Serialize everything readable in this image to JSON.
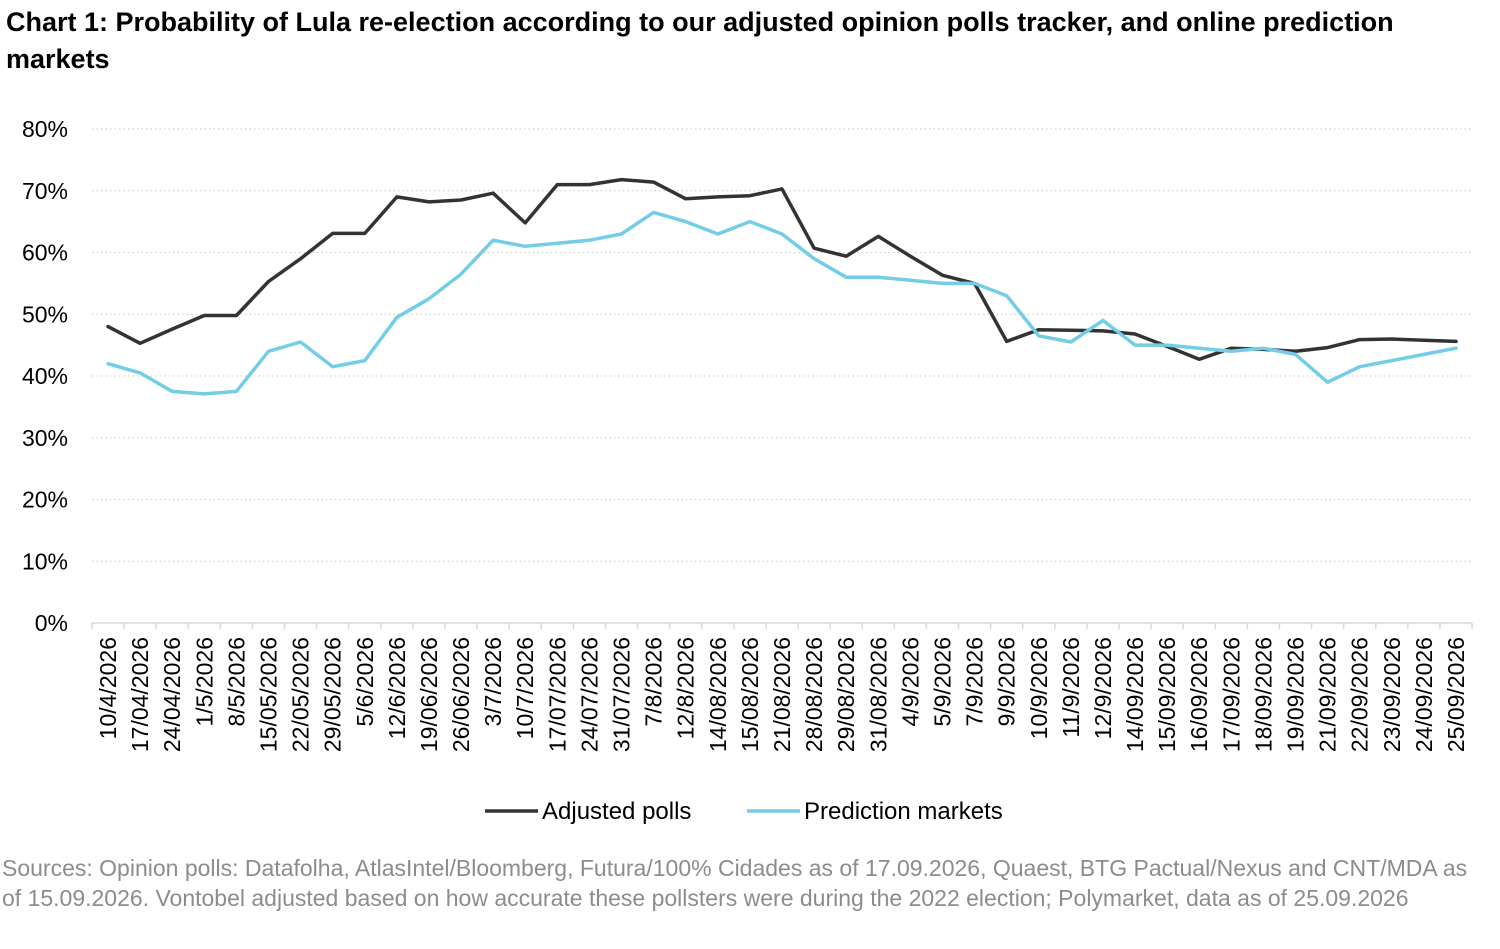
{
  "title": "Chart 1: Probability of Lula re-election according to our adjusted opinion polls tracker, and online prediction markets",
  "source": "Sources: Opinion polls: Datafolha, AtlasIntel/Bloomberg, Futura/100% Cidades as of 17.09.2026, Quaest, BTG Pactual/Nexus and CNT/MDA as of 15.09.2026. Vontobel adjusted based on how accurate these pollsters were during the 2022 election; Polymarket, data as of 25.09.2026",
  "chart_data": {
    "type": "line",
    "title": "Chart 1: Probability of Lula re-election according to our adjusted opinion polls tracker, and online prediction markets",
    "xlabel": "",
    "ylabel": "",
    "ylim": [
      0,
      0.8
    ],
    "y_ticks": [
      "0%",
      "10%",
      "20%",
      "30%",
      "40%",
      "50%",
      "60%",
      "70%",
      "80%"
    ],
    "grid": true,
    "legend_position": "bottom",
    "categories": [
      "10/4/2026",
      "17/04/2026",
      "24/04/2026",
      "1/5/2026",
      "8/5/2026",
      "15/05/2026",
      "22/05/2026",
      "29/05/2026",
      "5/6/2026",
      "12/6/2026",
      "19/06/2026",
      "26/06/2026",
      "3/7/2026",
      "10/7/2026",
      "17/07/2026",
      "24/07/2026",
      "31/07/2026",
      "7/8/2026",
      "12/8/2026",
      "14/08/2026",
      "15/08/2026",
      "21/08/2026",
      "28/08/2026",
      "29/08/2026",
      "31/08/2026",
      "4/9/2026",
      "5/9/2026",
      "7/9/2026",
      "9/9/2026",
      "10/9/2026",
      "11/9/2026",
      "12/9/2026",
      "14/09/2026",
      "15/09/2026",
      "16/09/2026",
      "17/09/2026",
      "18/09/2026",
      "19/09/2026",
      "21/09/2026",
      "22/09/2026",
      "23/09/2026",
      "24/09/2026",
      "25/09/2026"
    ],
    "series": [
      {
        "name": "Adjusted polls",
        "color": "#333333",
        "values": [
          0.48,
          0.453,
          0.476,
          0.498,
          0.498,
          0.553,
          0.59,
          0.631,
          0.631,
          0.69,
          0.682,
          0.685,
          0.696,
          0.648,
          0.71,
          0.71,
          0.718,
          0.714,
          0.687,
          0.69,
          0.692,
          0.703,
          0.607,
          0.594,
          0.626,
          0.594,
          0.563,
          0.55,
          0.456,
          0.475,
          0.474,
          0.473,
          0.468,
          0.448,
          0.427,
          0.445,
          0.443,
          0.44,
          0.446,
          0.459,
          0.46,
          0.458,
          0.456
        ]
      },
      {
        "name": "Prediction markets",
        "color": "#73cde6",
        "values": [
          0.42,
          0.405,
          0.375,
          0.371,
          0.375,
          0.44,
          0.455,
          0.415,
          0.425,
          0.495,
          0.525,
          0.565,
          0.62,
          0.61,
          0.615,
          0.62,
          0.63,
          0.665,
          0.65,
          0.63,
          0.65,
          0.63,
          0.59,
          0.56,
          0.56,
          0.555,
          0.55,
          0.55,
          0.53,
          0.465,
          0.455,
          0.49,
          0.45,
          0.45,
          0.445,
          0.44,
          0.445,
          0.435,
          0.39,
          0.415,
          0.425,
          0.435,
          0.445
        ]
      }
    ]
  }
}
